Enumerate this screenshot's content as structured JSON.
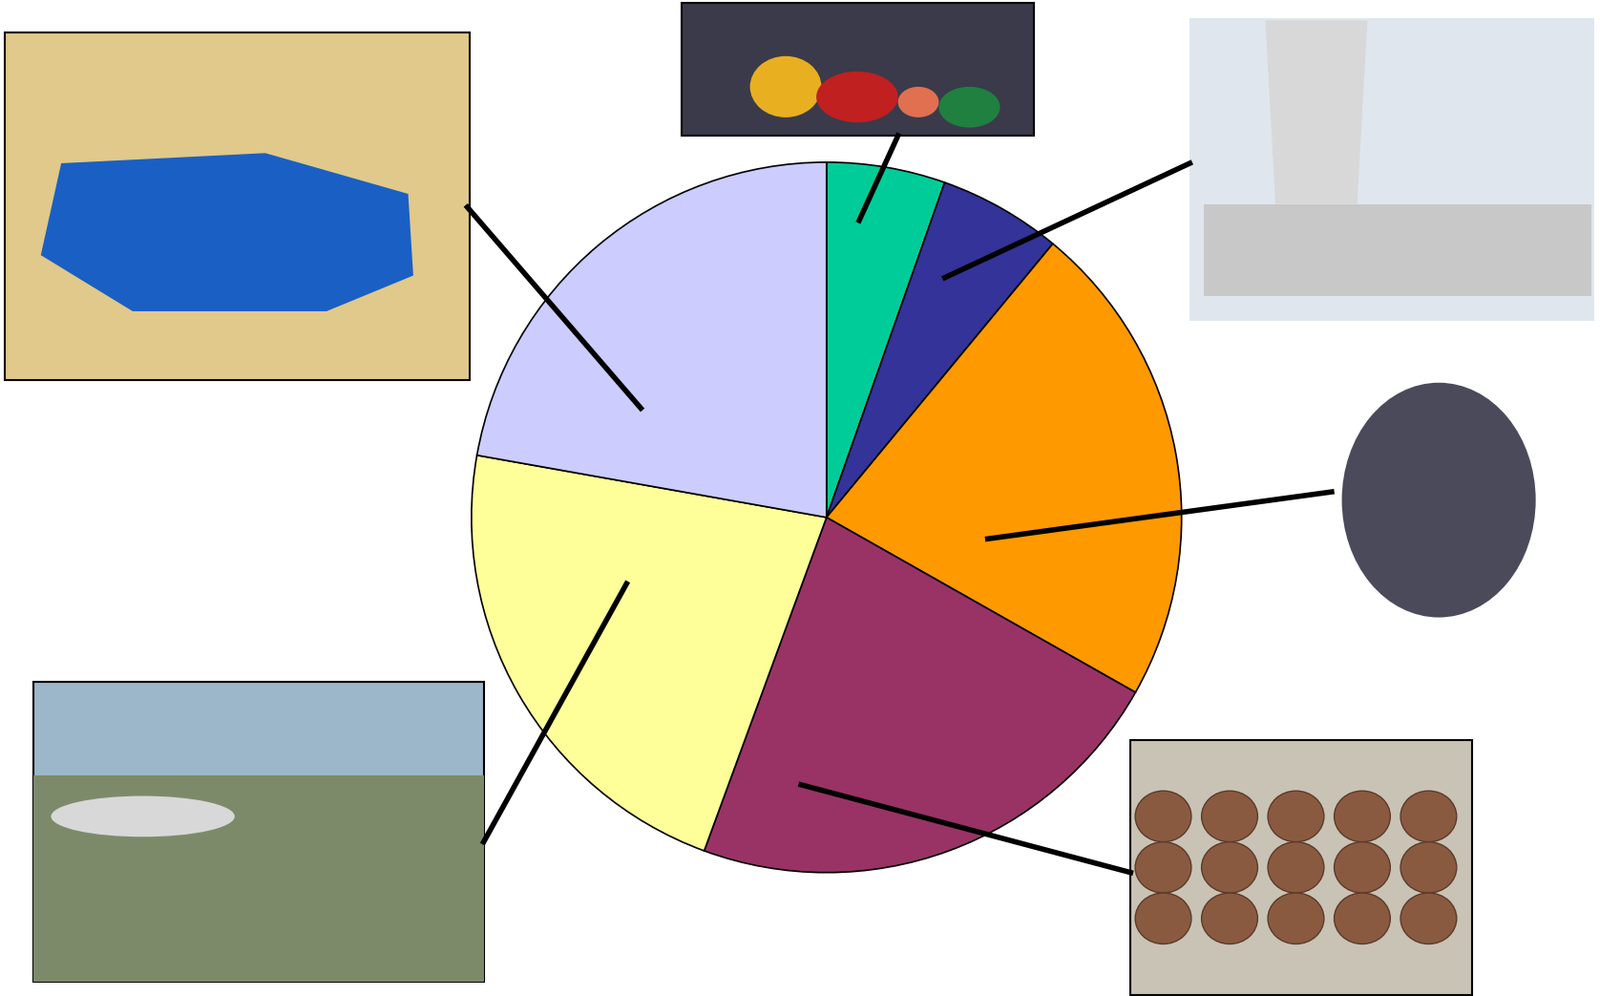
{
  "chart_data": {
    "type": "pie",
    "values": [
      5.4,
      5.6,
      22.2,
      22.4,
      22.2,
      22.2
    ],
    "colors": [
      "#00cc99",
      "#333399",
      "#ff9900",
      "#993366",
      "#ffff99",
      "#ccccff"
    ]
  }
}
